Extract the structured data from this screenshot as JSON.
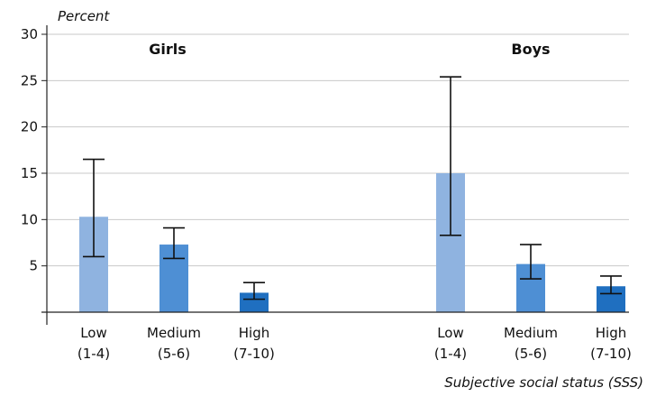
{
  "chart_data": {
    "type": "bar",
    "ylabel": "Percent",
    "xlabel": "Subjective social status (SSS)",
    "ylim": [
      0,
      30
    ],
    "yticks": [
      5,
      10,
      15,
      20,
      25,
      30
    ],
    "grid": true,
    "groups": [
      {
        "name": "Girls",
        "categories": [
          {
            "label": "Low",
            "range": "(1-4)",
            "value": 10.3,
            "err_low": 6.0,
            "err_high": 16.5,
            "color": "#8fb3e0"
          },
          {
            "label": "Medium",
            "range": "(5-6)",
            "value": 7.3,
            "err_low": 5.8,
            "err_high": 9.1,
            "color": "#4e8fd4"
          },
          {
            "label": "High",
            "range": "(7-10)",
            "value": 2.1,
            "err_low": 1.4,
            "err_high": 3.2,
            "color": "#1f6fc0"
          }
        ]
      },
      {
        "name": "Boys",
        "categories": [
          {
            "label": "Low",
            "range": "(1-4)",
            "value": 15.0,
            "err_low": 8.3,
            "err_high": 25.4,
            "color": "#8fb3e0"
          },
          {
            "label": "Medium",
            "range": "(5-6)",
            "value": 5.2,
            "err_low": 3.6,
            "err_high": 7.3,
            "color": "#4e8fd4"
          },
          {
            "label": "High",
            "range": "(7-10)",
            "value": 2.8,
            "err_low": 2.0,
            "err_high": 3.9,
            "color": "#1f6fc0"
          }
        ]
      }
    ]
  }
}
